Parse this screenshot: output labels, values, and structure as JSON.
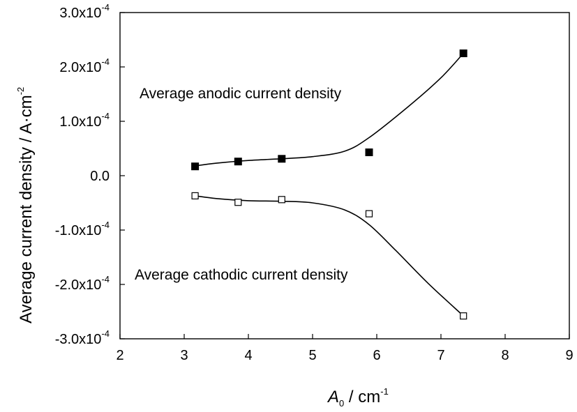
{
  "chart_data": {
    "type": "scatter",
    "title": "",
    "xlabel": {
      "symbol": "A",
      "subscript": "0",
      "unit": " / cm",
      "unit_exp": "-1"
    },
    "ylabel": {
      "text": "Average current density / A·cm",
      "exp": "-2"
    },
    "xlim": [
      2,
      9
    ],
    "ylim": [
      -0.0003,
      0.0003
    ],
    "x_ticks": [
      "2",
      "3",
      "4",
      "5",
      "6",
      "7",
      "8",
      "9"
    ],
    "y_ticks": [
      {
        "value": 0.0003,
        "mantissa": "3.0x10",
        "exp": "-4"
      },
      {
        "value": 0.0002,
        "mantissa": "2.0x10",
        "exp": "-4"
      },
      {
        "value": 0.0001,
        "mantissa": "1.0x10",
        "exp": "-4"
      },
      {
        "value": 0.0,
        "mantissa": "0.0",
        "exp": ""
      },
      {
        "value": -0.0001,
        "mantissa": "-1.0x10",
        "exp": "-4"
      },
      {
        "value": -0.0002,
        "mantissa": "-2.0x10",
        "exp": "-4"
      },
      {
        "value": -0.0003,
        "mantissa": "-3.0x10",
        "exp": "-4"
      }
    ],
    "grid": false,
    "series": [
      {
        "name": "Average anodic current density",
        "marker": "filled-square",
        "x": [
          3.17,
          3.84,
          4.52,
          5.88,
          7.35
        ],
        "y": [
          1.7e-05,
          2.6e-05,
          3.1e-05,
          4.3e-05,
          0.000225
        ]
      },
      {
        "name": "Average cathodic current density",
        "marker": "open-square",
        "x": [
          3.17,
          3.84,
          4.52,
          5.88,
          7.35
        ],
        "y": [
          -3.7e-05,
          -4.9e-05,
          -4.4e-05,
          -7e-05,
          -0.000258
        ]
      }
    ],
    "fit_curves": [
      {
        "series": "Average anodic current density",
        "x": [
          3.17,
          3.5,
          4.0,
          4.5,
          5.0,
          5.5,
          5.88,
          6.5,
          7.0,
          7.35
        ],
        "y": [
          1.8e-05,
          2.3e-05,
          2.8e-05,
          3.1e-05,
          3.5e-05,
          4.5e-05,
          7e-05,
          0.000128,
          0.00018,
          0.000225
        ]
      },
      {
        "series": "Average cathodic current density",
        "x": [
          3.17,
          3.5,
          4.0,
          4.5,
          5.0,
          5.5,
          5.88,
          6.3,
          6.8,
          7.35
        ],
        "y": [
          -3.7e-05,
          -4.2e-05,
          -4.6e-05,
          -4.7e-05,
          -5e-05,
          -6.3e-05,
          -9e-05,
          -0.000138,
          -0.000198,
          -0.000258
        ]
      }
    ],
    "annotations": [
      {
        "text": "Average anodic current density",
        "series": 0
      },
      {
        "text": "Average cathodic current density",
        "series": 1
      }
    ]
  }
}
